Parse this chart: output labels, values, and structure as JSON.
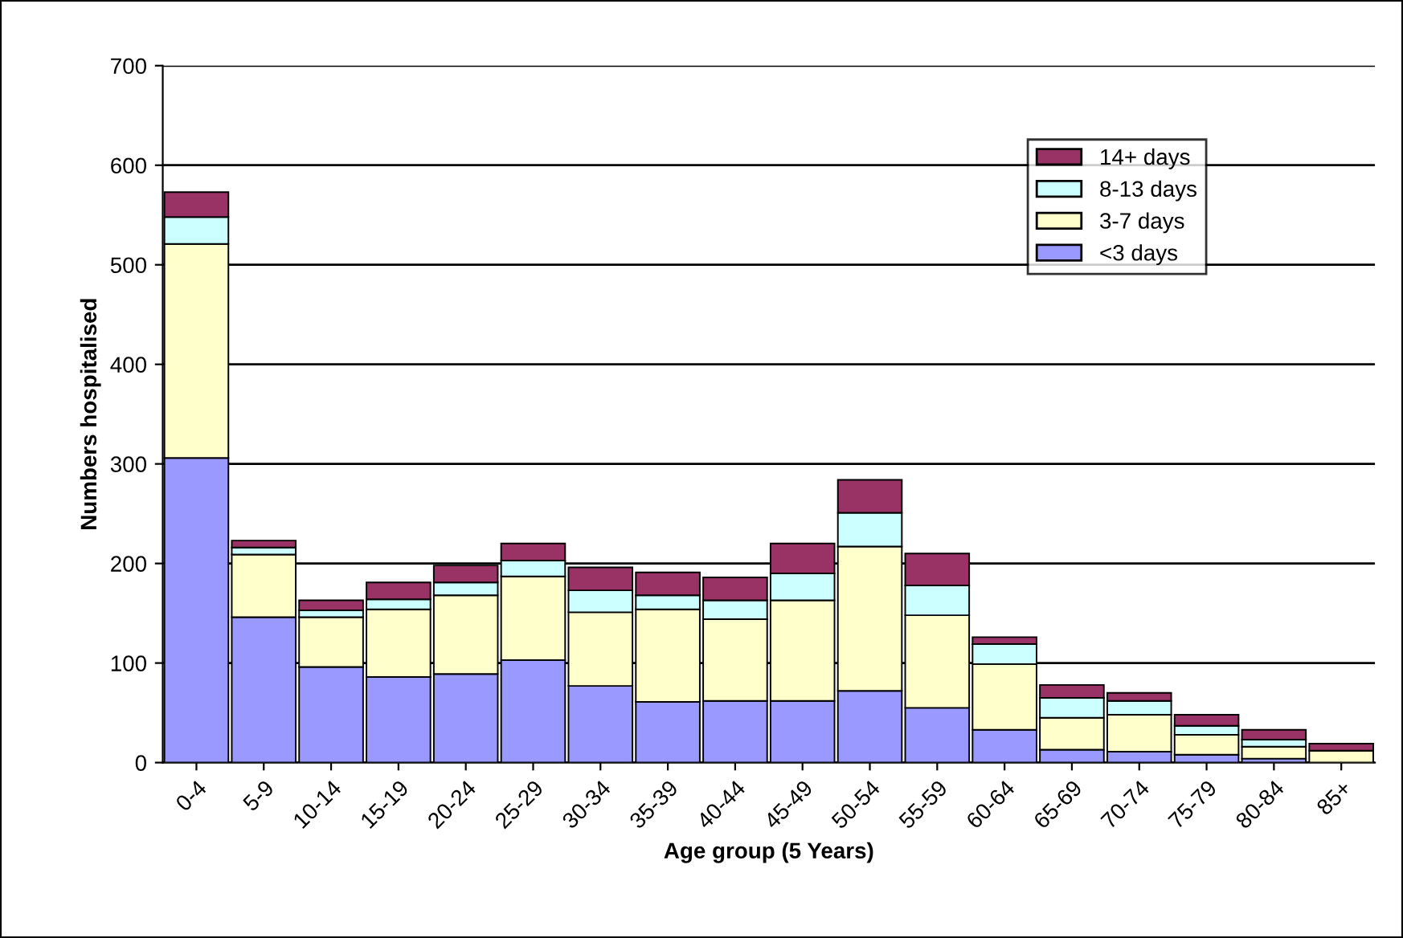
{
  "chart_data": {
    "type": "bar",
    "stacked": true,
    "xlabel": "Age group (5 Years)",
    "ylabel": "Numbers hospitalised",
    "categories": [
      "0-4",
      "5-9",
      "10-14",
      "15-19",
      "20-24",
      "25-29",
      "30-34",
      "35-39",
      "40-44",
      "45-49",
      "50-54",
      "55-59",
      "60-64",
      "65-69",
      "70-74",
      "75-79",
      "80-84",
      "85+"
    ],
    "series": [
      {
        "name": "<3 days",
        "color": "#9999ff",
        "values": [
          306,
          146,
          96,
          86,
          89,
          103,
          77,
          61,
          62,
          62,
          72,
          55,
          33,
          13,
          11,
          8,
          4,
          null
        ]
      },
      {
        "name": "3-7 days",
        "color": "#ffffcc",
        "values": [
          215,
          63,
          50,
          68,
          79,
          84,
          74,
          93,
          82,
          101,
          145,
          93,
          66,
          32,
          37,
          20,
          12,
          12
        ]
      },
      {
        "name": "8-13 days",
        "color": "#ccffff",
        "values": [
          27,
          7,
          7,
          10,
          13,
          16,
          22,
          14,
          19,
          27,
          34,
          30,
          20,
          20,
          14,
          9,
          7,
          null
        ]
      },
      {
        "name": "14+ days",
        "color": "#993366",
        "values": [
          25,
          7,
          10,
          17,
          17,
          17,
          23,
          23,
          23,
          30,
          33,
          32,
          7,
          13,
          8,
          11,
          10,
          7
        ]
      }
    ],
    "ylim": [
      0,
      700
    ],
    "yticks": [
      0,
      100,
      200,
      300,
      400,
      500,
      600,
      700
    ],
    "grid": "y",
    "legend": "top right"
  }
}
